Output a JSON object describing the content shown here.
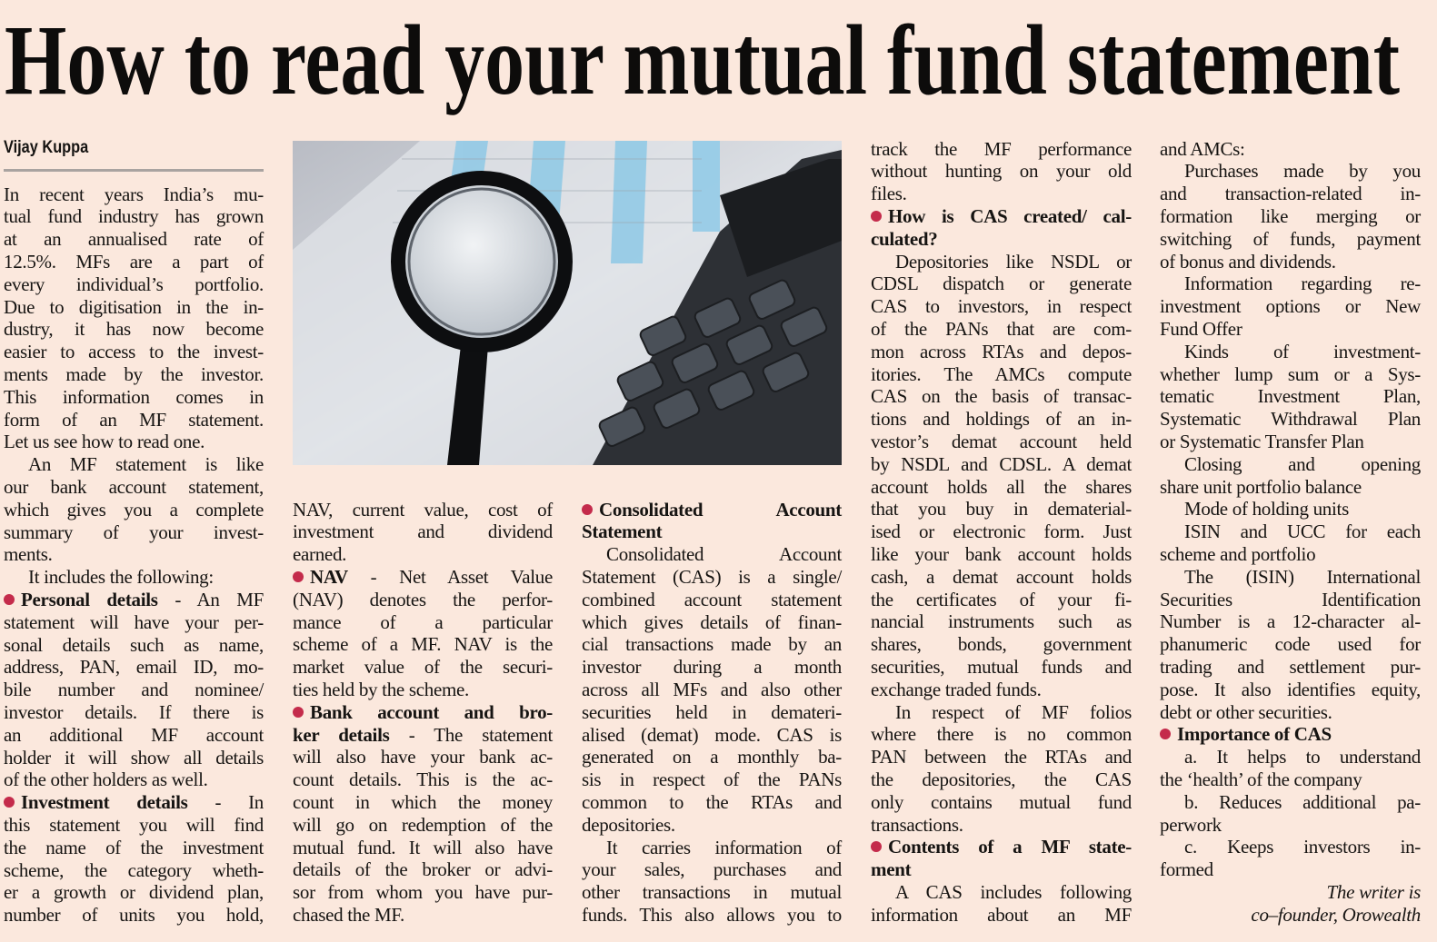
{
  "title": "How to read your mutual fund statement",
  "byline": "Vijay Kuppa",
  "columns": [
    {
      "paragraphs": [
        {
          "lines": [
            "In recent years India’s mu-",
            "tual fund industry has grown",
            "at an annualised rate of",
            "12.5%. MFs are a part of",
            "every individual’s portfolio.",
            "Due to digitisation in the in-",
            "dustry, it has now become",
            "easier to access to the invest-",
            "ments made by the investor.",
            "This information comes in",
            "form of an MF statement.",
            "Let us see how to read one."
          ]
        },
        {
          "indent": true,
          "lines": [
            "An MF statement is like",
            "our bank account statement,",
            "which gives you a complete",
            "summary of your invest-",
            "ments."
          ]
        },
        {
          "indent": true,
          "lines": [
            "It includes the following:"
          ]
        },
        {
          "bullet": true,
          "lines": [
            {
              "bold": "Personal details",
              "text": " - An MF"
            },
            "statement will have your per-",
            "sonal details such as name,",
            "address, PAN, email ID, mo-",
            "bile number and nominee/",
            "investor details. If there is",
            "an additional MF account",
            "holder it will show all details",
            "of the other holders as well."
          ]
        },
        {
          "bullet": true,
          "continues": true,
          "lines": [
            {
              "bold": "Investment details",
              "text": " - In"
            },
            "this statement you will find",
            "the name of the investment",
            "scheme, the category wheth-",
            "er a growth or dividend plan,",
            "number of units you hold,"
          ]
        }
      ]
    },
    {
      "paragraphs": [
        {
          "lines": [
            "NAV, current value, cost of",
            "investment and dividend",
            "earned."
          ]
        },
        {
          "bullet": true,
          "lines": [
            {
              "bold": "NAV",
              "text": " - Net Asset Value"
            },
            "(NAV) denotes the perfor-",
            "mance of a particular",
            "scheme of a MF. NAV is the",
            "market value of the securi-",
            "ties held by the scheme."
          ]
        },
        {
          "bullet": true,
          "lines": [
            {
              "bold": "Bank account and bro-"
            },
            {
              "bold": "ker details",
              "text": " - The statement"
            },
            "will also have your bank ac-",
            "count details. This is the ac-",
            "count in which the money",
            "will go on redemption of the",
            "mutual fund. It will also have",
            "details of the broker or advi-",
            "sor from whom you have pur-",
            "chased the MF."
          ]
        }
      ]
    },
    {
      "paragraphs": [
        {
          "bullet": true,
          "lines": [
            {
              "bold": "Consolidated Account"
            },
            {
              "bold": "Statement"
            }
          ]
        },
        {
          "indent": true,
          "lines": [
            "Consolidated Account",
            "Statement (CAS) is a single/",
            "combined account statement",
            "which gives details of finan-",
            "cial transactions made by an",
            "investor during a month",
            "across all MFs and also other",
            "securities held in demateri-",
            "alised (demat) mode. CAS is",
            "generated on a monthly ba-",
            "sis in respect of the PANs",
            "common to the RTAs and",
            "depositories."
          ]
        },
        {
          "indent": true,
          "continues": true,
          "lines": [
            "It carries information of",
            "your sales, purchases and",
            "other transactions in mutual",
            "funds. This also allows you to"
          ]
        }
      ]
    },
    {
      "paragraphs": [
        {
          "lines": [
            "track the MF performance",
            "without hunting on your old",
            "files."
          ]
        },
        {
          "bullet": true,
          "lines": [
            {
              "bold": "How is CAS created/ cal-"
            },
            {
              "bold": "culated?"
            }
          ]
        },
        {
          "indent": true,
          "lines": [
            "Depositories like NSDL or",
            "CDSL dispatch or generate",
            "CAS to investors, in respect",
            "of the PANs that are com-",
            "mon across RTAs and depos-",
            "itories. The AMCs compute",
            "CAS on the basis of transac-",
            "tions and holdings of an in-",
            "vestor’s demat account held",
            "by NSDL and CDSL. A demat",
            "account holds all the shares",
            "that you buy in dematerial-",
            "ised or electronic form. Just",
            "like your bank account holds",
            "cash, a demat account holds",
            "the certificates of your fi-",
            "nancial instruments such as",
            "shares, bonds, government",
            "securities, mutual funds and",
            "exchange traded funds."
          ]
        },
        {
          "indent": true,
          "lines": [
            "In respect of MF folios",
            "where there is no common",
            "PAN between the RTAs and",
            "the depositories, the CAS",
            "only contains mutual fund",
            "transactions."
          ]
        },
        {
          "bullet": true,
          "lines": [
            {
              "bold": "Contents of a MF state-"
            },
            {
              "bold": "ment"
            }
          ]
        },
        {
          "indent": true,
          "continues": true,
          "lines": [
            "A CAS includes following",
            "information about an MF"
          ]
        }
      ]
    },
    {
      "paragraphs": [
        {
          "lines": [
            "and AMCs:"
          ]
        },
        {
          "indent": true,
          "lines": [
            "Purchases made by you",
            "and transaction-related in-",
            "formation like merging or",
            "switching of funds, payment",
            "of bonus and dividends."
          ]
        },
        {
          "indent": true,
          "lines": [
            "Information regarding re-",
            "investment options or New",
            "Fund Offer"
          ]
        },
        {
          "indent": true,
          "lines": [
            "Kinds of investment-",
            "whether lump sum or a Sys-",
            "tematic Investment Plan,",
            "Systematic Withdrawal Plan",
            "or Systematic Transfer Plan"
          ]
        },
        {
          "indent": true,
          "lines": [
            "Closing and opening",
            "share unit portfolio balance"
          ]
        },
        {
          "indent": true,
          "lines": [
            "Mode of holding units"
          ]
        },
        {
          "indent": true,
          "lines": [
            "ISIN and UCC for each",
            "scheme and portfolio"
          ]
        },
        {
          "indent": true,
          "lines": [
            "The (ISIN) International",
            "Securities Identification",
            "Number is a 12-character al-",
            "phanumeric code used for",
            "trading and settlement pur-",
            "pose. It also identifies equity,",
            "debt or other securities."
          ]
        },
        {
          "bullet": true,
          "lines": [
            {
              "bold": "Importance of CAS"
            }
          ]
        },
        {
          "indent": true,
          "lines": [
            "a. It helps to understand",
            "the ‘health’ of the company"
          ]
        },
        {
          "indent": true,
          "lines": [
            "b. Reduces additional pa-",
            "perwork"
          ]
        },
        {
          "indent": true,
          "lines": [
            "c. Keeps investors in-",
            "formed"
          ]
        }
      ]
    }
  ],
  "credit": [
    "The writer is",
    "co–founder, Orowealth"
  ]
}
